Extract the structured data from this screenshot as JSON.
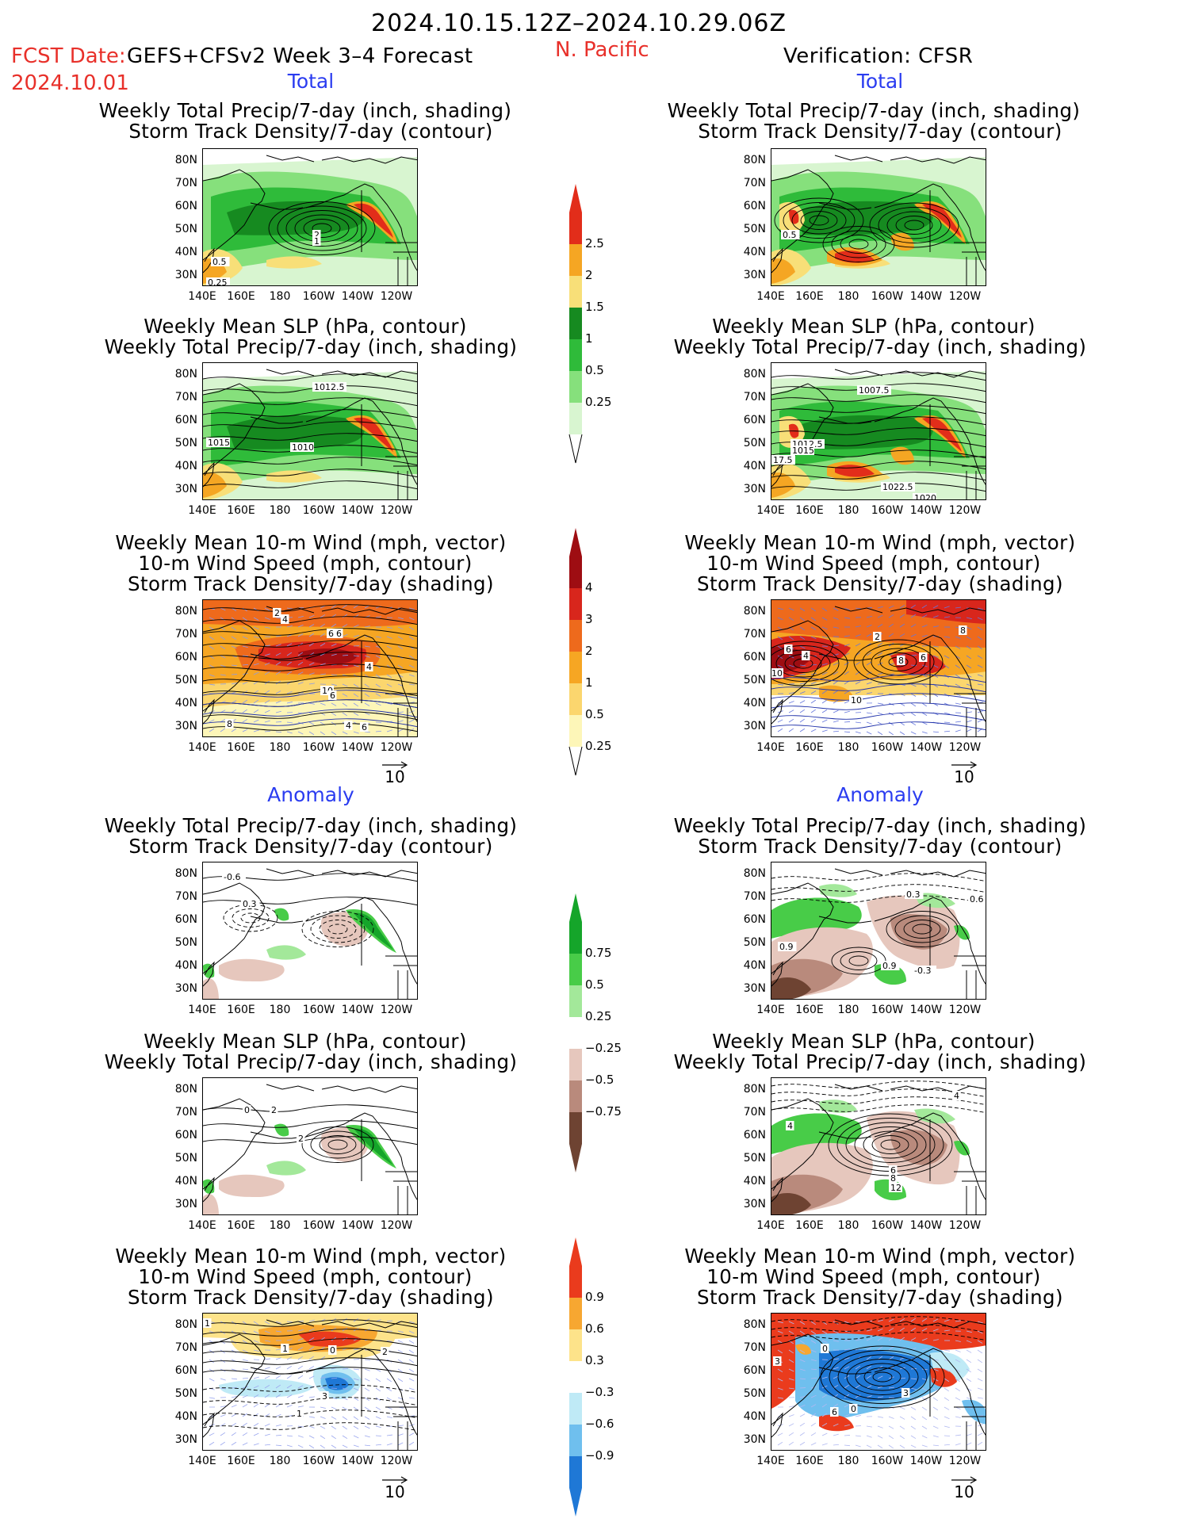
{
  "header": {
    "date_range": "2024.10.15.12Z–2024.10.29.06Z",
    "fcst_label": "FCST Date:",
    "fcst_model": "GEFS+CFSv2 Week 3–4 Forecast",
    "fcst_date": "2024.10.01",
    "region": "N. Pacific",
    "verification": "Verification: CFSR"
  },
  "sections": {
    "total": "Total",
    "anomaly": "Anomaly"
  },
  "panel_titles": {
    "precip_std": [
      "Weekly Total Precip/7-day (inch, shading)",
      "Storm Track Density/7-day (contour)"
    ],
    "slp_precip": [
      "Weekly Mean SLP (hPa, contour)",
      "Weekly Total Precip/7-day (inch, shading)"
    ],
    "wind_std": [
      "Weekly Mean 10-m Wind (mph, vector)",
      "10-m Wind Speed (mph, contour)",
      "Storm Track Density/7-day (shading)"
    ]
  },
  "axes": {
    "lat_ticks": [
      "80N",
      "70N",
      "60N",
      "50N",
      "40N",
      "30N"
    ],
    "lon_ticks": [
      "140E",
      "160E",
      "180",
      "160W",
      "140W",
      "120W"
    ]
  },
  "colorbars": {
    "precip_total": [
      "2.5",
      "2",
      "1.5",
      "1",
      "0.5",
      "0.25"
    ],
    "std_total": [
      "4",
      "3",
      "2",
      "1",
      "0.5",
      "0.25"
    ],
    "precip_anom": [
      "0.75",
      "0.5",
      "0.25",
      "−0.25",
      "−0.5",
      "−0.75"
    ],
    "std_anom": [
      "0.9",
      "0.6",
      "0.3",
      "−0.3",
      "−0.6",
      "−0.9"
    ]
  },
  "colors": {
    "precip_total": [
      "#d8f5d0",
      "#86e07c",
      "#2fbb3a",
      "#168a20",
      "#f8df78",
      "#f5a623",
      "#e22d1a"
    ],
    "std_total": [
      "#fdf6b8",
      "#fbd66e",
      "#f6a623",
      "#ee6a1c",
      "#d8261c",
      "#9e0d12"
    ],
    "precip_anom": [
      "#a3e89a",
      "#48cc48",
      "#15a52a",
      "#e6c7bd",
      "#b98a7c",
      "#6e4332"
    ],
    "std_anom": [
      "#fde38a",
      "#f7a731",
      "#ea3b1d",
      "#bfeaf6",
      "#6fbfee",
      "#1f78d6"
    ]
  },
  "vector_ref": "10",
  "map_labels": {
    "m1": [
      "2",
      "1",
      "0.5",
      "0.25"
    ],
    "m2": [
      "0.5"
    ],
    "m3": [
      "1012.5",
      "1015",
      "1010"
    ],
    "m4": [
      "1007.5",
      "1012.5",
      "1015",
      "17.5",
      "1022.5",
      "1020"
    ],
    "m5": [
      "2",
      "4",
      "6",
      "6",
      "4",
      "10",
      "6",
      "8",
      "4",
      "6"
    ],
    "m6": [
      "8",
      "2",
      "6",
      "10",
      "4",
      "8",
      "6",
      "10"
    ],
    "m7": [
      "-0.6",
      "0.3"
    ],
    "m8": [
      "0.3",
      "0.6",
      "0.9",
      "0.9",
      "-0.3"
    ],
    "m9": [
      "0",
      "2",
      "2"
    ],
    "m10": [
      "4",
      "4",
      "6",
      "8",
      "12"
    ],
    "m11": [
      "1",
      "1",
      "0",
      "2",
      "3",
      "1"
    ],
    "m12": [
      "0",
      "3",
      "3",
      "0",
      "6"
    ]
  }
}
